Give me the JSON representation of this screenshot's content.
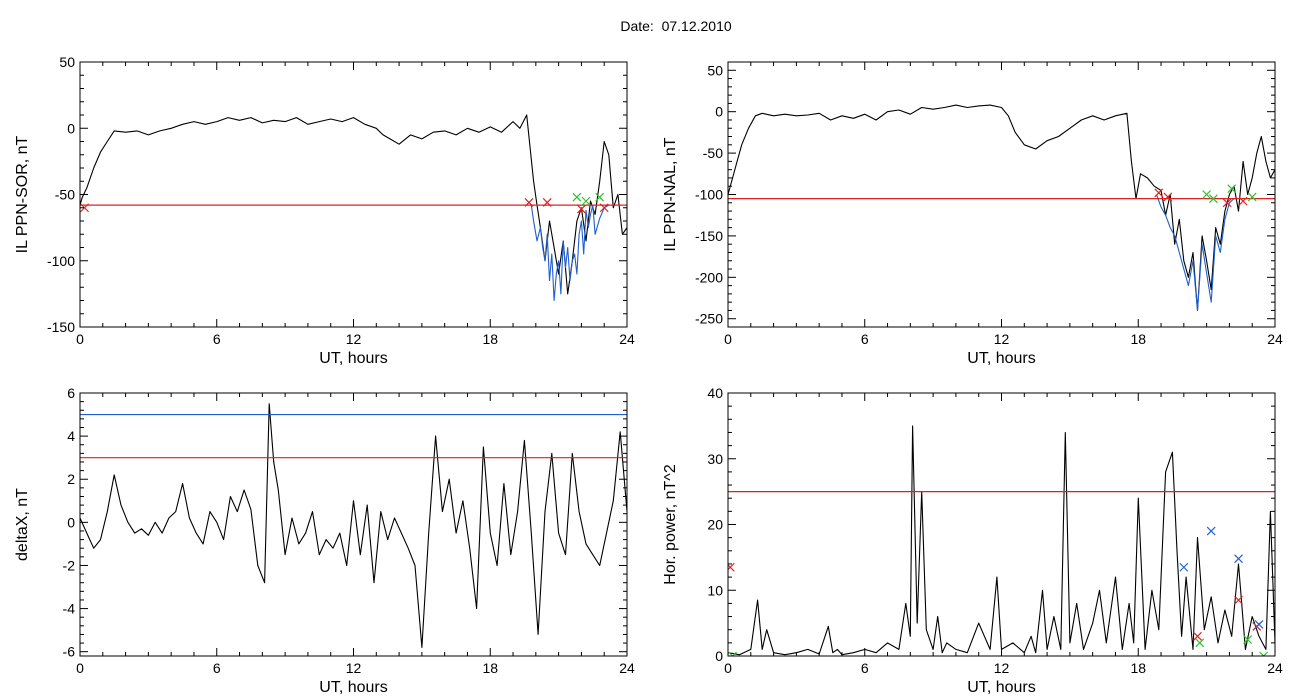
{
  "title": "Date:  07.12.2010",
  "chart_data": [
    {
      "id": "tl",
      "type": "line",
      "xlabel": "UT, hours",
      "ylabel": "IL PPN-SOR, nT",
      "xlim": [
        0,
        24
      ],
      "ylim": [
        -150,
        50
      ],
      "xticks": [
        0,
        6,
        12,
        18,
        24
      ],
      "yticks": [
        -150,
        -100,
        -50,
        0,
        50
      ],
      "ytick_labels": [
        "-150",
        "-100",
        "-50",
        "0",
        "50"
      ],
      "series": [
        {
          "color": "#000000",
          "x": [
            0,
            0.1,
            0.3,
            0.6,
            0.9,
            1.2,
            1.5,
            2,
            2.5,
            3,
            3.5,
            4,
            4.5,
            5,
            5.5,
            6,
            6.5,
            7,
            7.5,
            8,
            8.5,
            9,
            9.5,
            10,
            10.5,
            11,
            11.5,
            12,
            12.5,
            13,
            13.3,
            13.6,
            14,
            14.5,
            15,
            15.5,
            16,
            16.5,
            17,
            17.5,
            18,
            18.5,
            19,
            19.3,
            19.6,
            19.9,
            20.05,
            20.2,
            20.4,
            20.6,
            20.8,
            21,
            21.2,
            21.4,
            21.6,
            21.8,
            22,
            22.2,
            22.4,
            22.6,
            22.8,
            23,
            23.2,
            23.4,
            23.6,
            23.8,
            24
          ],
          "y": [
            -58,
            -52,
            -45,
            -30,
            -18,
            -10,
            -2,
            -3,
            -2,
            -5,
            -2,
            0,
            3,
            5,
            3,
            5,
            8,
            6,
            8,
            4,
            6,
            5,
            8,
            3,
            5,
            7,
            5,
            8,
            3,
            0,
            -5,
            -8,
            -12,
            -5,
            -8,
            -3,
            -2,
            -5,
            0,
            -3,
            1,
            -3,
            5,
            0,
            10,
            -40,
            -58,
            -75,
            -100,
            -70,
            -90,
            -110,
            -85,
            -125,
            -100,
            -70,
            -60,
            -85,
            -55,
            -65,
            -40,
            -10,
            -20,
            -60,
            -50,
            -80,
            -75
          ]
        },
        {
          "color": "#1f5fd0",
          "x": [
            19.8,
            19.9,
            20.05,
            20.2,
            20.3,
            20.4,
            20.5,
            20.6,
            20.7,
            20.8,
            20.9,
            21,
            21.1,
            21.2,
            21.3,
            21.4,
            21.5,
            21.6,
            21.7,
            21.8,
            21.9,
            22,
            22.1,
            22.2,
            22.3,
            22.4,
            22.5,
            22.6,
            22.8,
            23,
            23.2
          ],
          "y": [
            -58,
            -70,
            -85,
            -75,
            -90,
            -100,
            -80,
            -115,
            -95,
            -130,
            -110,
            -100,
            -125,
            -85,
            -105,
            -90,
            -115,
            -100,
            -95,
            -110,
            -80,
            -70,
            -95,
            -62,
            -75,
            -65,
            -58,
            -80,
            -68,
            -60,
            -58
          ]
        },
        {
          "color": "#e02020",
          "kind": "hline",
          "y": -58
        }
      ],
      "markers": [
        {
          "x": 0.2,
          "y": -60,
          "color": "#e02020"
        },
        {
          "x": 19.7,
          "y": -56,
          "color": "#e02020"
        },
        {
          "x": 20.5,
          "y": -56,
          "color": "#e02020"
        },
        {
          "x": 21.8,
          "y": -52,
          "color": "#30c030"
        },
        {
          "x": 22.2,
          "y": -55,
          "color": "#30c030"
        },
        {
          "x": 22.0,
          "y": -61,
          "color": "#e02020"
        },
        {
          "x": 22.8,
          "y": -52,
          "color": "#30c030"
        },
        {
          "x": 23.0,
          "y": -60,
          "color": "#e02020"
        }
      ]
    },
    {
      "id": "tr",
      "type": "line",
      "xlabel": "UT, hours",
      "ylabel": "IL PPN-NAL, nT",
      "xlim": [
        0,
        24
      ],
      "ylim": [
        -260,
        60
      ],
      "xticks": [
        0,
        6,
        12,
        18,
        24
      ],
      "yticks": [
        -250,
        -200,
        -150,
        -100,
        -50,
        0,
        50
      ],
      "ytick_labels": [
        "-250",
        "-200",
        "-150",
        "-100",
        "-50",
        "0",
        "50"
      ],
      "series": [
        {
          "color": "#000000",
          "x": [
            0,
            0.2,
            0.4,
            0.6,
            0.9,
            1.2,
            1.5,
            2,
            2.5,
            3,
            3.5,
            4,
            4.5,
            5,
            5.5,
            6,
            6.5,
            7,
            7.5,
            8,
            8.5,
            9,
            9.5,
            10,
            10.5,
            11,
            11.5,
            12,
            12.3,
            12.6,
            13,
            13.5,
            14,
            14.5,
            15,
            15.5,
            16,
            16.5,
            17,
            17.5,
            17.7,
            17.9,
            18.1,
            18.4,
            18.7,
            19,
            19.2,
            19.4,
            19.6,
            19.8,
            20,
            20.2,
            20.4,
            20.6,
            20.8,
            21,
            21.2,
            21.4,
            21.6,
            21.8,
            22,
            22.2,
            22.4,
            22.6,
            22.8,
            23,
            23.2,
            23.4,
            23.6,
            23.8,
            24
          ],
          "y": [
            -100,
            -80,
            -60,
            -40,
            -20,
            -5,
            -2,
            -5,
            -3,
            -5,
            -4,
            -2,
            -10,
            -5,
            -8,
            -3,
            -10,
            0,
            2,
            -3,
            5,
            3,
            5,
            8,
            5,
            7,
            8,
            5,
            -5,
            -25,
            -40,
            -45,
            -35,
            -30,
            -20,
            -10,
            -5,
            -10,
            -5,
            -2,
            -60,
            -105,
            -75,
            -80,
            -90,
            -95,
            -125,
            -100,
            -160,
            -130,
            -180,
            -200,
            -170,
            -240,
            -150,
            -180,
            -215,
            -140,
            -160,
            -120,
            -100,
            -90,
            -120,
            -60,
            -100,
            -80,
            -50,
            -30,
            -60,
            -80,
            -70
          ]
        },
        {
          "color": "#1f5fd0",
          "x": [
            18.8,
            19,
            19.2,
            19.4,
            19.6,
            19.8,
            20,
            20.2,
            20.4,
            20.6,
            20.8,
            21,
            21.2,
            21.4,
            21.6,
            21.8,
            22,
            22.2
          ],
          "y": [
            -100,
            -115,
            -125,
            -140,
            -150,
            -170,
            -190,
            -210,
            -180,
            -240,
            -160,
            -195,
            -230,
            -150,
            -170,
            -130,
            -110,
            -105
          ]
        },
        {
          "color": "#e02020",
          "kind": "hline",
          "y": -105
        }
      ],
      "markers": [
        {
          "x": 18.9,
          "y": -98,
          "color": "#e02020"
        },
        {
          "x": 19.3,
          "y": -103,
          "color": "#e02020"
        },
        {
          "x": 21.0,
          "y": -100,
          "color": "#30c030"
        },
        {
          "x": 21.3,
          "y": -105,
          "color": "#30c030"
        },
        {
          "x": 21.9,
          "y": -110,
          "color": "#e02020"
        },
        {
          "x": 22.1,
          "y": -93,
          "color": "#30c030"
        },
        {
          "x": 22.6,
          "y": -108,
          "color": "#e02020"
        },
        {
          "x": 23.0,
          "y": -103,
          "color": "#30c030"
        }
      ]
    },
    {
      "id": "bl",
      "type": "line",
      "xlabel": "UT, hours",
      "ylabel": "deltaX, nT",
      "xlim": [
        0,
        24
      ],
      "ylim": [
        -6.2,
        6
      ],
      "xticks": [
        0,
        6,
        12,
        18,
        24
      ],
      "yticks": [
        -6,
        -4,
        -2,
        0,
        2,
        4,
        6
      ],
      "ytick_labels": [
        "-6",
        "-4",
        "-2",
        "0",
        "2",
        "4",
        "6"
      ],
      "series": [
        {
          "color": "#000000",
          "x": [
            0,
            0.3,
            0.6,
            0.9,
            1.2,
            1.5,
            1.8,
            2.1,
            2.4,
            2.7,
            3,
            3.3,
            3.6,
            3.9,
            4.2,
            4.5,
            4.8,
            5.1,
            5.4,
            5.7,
            6,
            6.3,
            6.6,
            6.9,
            7.2,
            7.5,
            7.8,
            8.1,
            8.3,
            8.5,
            8.7,
            9,
            9.3,
            9.6,
            9.9,
            10.2,
            10.5,
            10.8,
            11.1,
            11.4,
            11.7,
            12,
            12.3,
            12.6,
            12.9,
            13.2,
            13.5,
            13.8,
            14.1,
            14.4,
            14.7,
            15,
            15.3,
            15.6,
            15.9,
            16.2,
            16.5,
            16.8,
            17.1,
            17.4,
            17.7,
            18,
            18.3,
            18.6,
            18.9,
            19.2,
            19.5,
            19.8,
            20.1,
            20.4,
            20.7,
            21,
            21.3,
            21.6,
            21.9,
            22.2,
            22.5,
            22.8,
            23.1,
            23.4,
            23.7,
            24
          ],
          "y": [
            0.2,
            -0.5,
            -1.2,
            -0.8,
            0.5,
            2.2,
            0.8,
            0,
            -0.5,
            -0.3,
            -0.6,
            0,
            -0.5,
            0.2,
            0.5,
            1.8,
            0.2,
            -0.5,
            -1,
            0.5,
            0,
            -0.8,
            1.2,
            0.5,
            1.5,
            0.6,
            -2,
            -2.8,
            5.5,
            2.8,
            1.5,
            -1.5,
            0.2,
            -1,
            -0.5,
            0.5,
            -1.5,
            -0.8,
            -1.2,
            -0.5,
            -2,
            1,
            -1.5,
            0.8,
            -2.8,
            0.5,
            -0.8,
            0.2,
            -0.5,
            -1.2,
            -2,
            -5.8,
            -0.5,
            4,
            0.5,
            2,
            -0.5,
            1,
            -1.2,
            -4,
            3.5,
            -0.5,
            -2,
            1.8,
            -1.5,
            0.5,
            3.8,
            -0.5,
            -5.2,
            0.5,
            3.2,
            -0.5,
            -1.5,
            3.2,
            0.5,
            -1,
            -1.5,
            -2,
            -0.5,
            1,
            4.2,
            0.5
          ]
        },
        {
          "color": "#1f5fd0",
          "kind": "hline",
          "y": 5
        },
        {
          "color": "#e02020",
          "kind": "hline",
          "y": 3
        }
      ],
      "markers": []
    },
    {
      "id": "br",
      "type": "line",
      "xlabel": "UT, hours",
      "ylabel": "Hor. power, nT^2",
      "xlim": [
        0,
        24
      ],
      "ylim": [
        0,
        40
      ],
      "xticks": [
        0,
        6,
        12,
        18,
        24
      ],
      "yticks": [
        0,
        10,
        20,
        30,
        40
      ],
      "ytick_labels": [
        "0",
        "10",
        "20",
        "30",
        "40"
      ],
      "series": [
        {
          "color": "#000000",
          "x": [
            0,
            0.5,
            1,
            1.3,
            1.5,
            1.7,
            2,
            2.5,
            3,
            3.5,
            4,
            4.4,
            4.6,
            4.8,
            5,
            5.5,
            6,
            6.5,
            7,
            7.5,
            7.8,
            8,
            8.1,
            8.3,
            8.5,
            8.7,
            9,
            9.2,
            9.4,
            9.6,
            10,
            10.5,
            11,
            11.5,
            11.8,
            12,
            12.5,
            13,
            13.3,
            13.5,
            13.8,
            14,
            14.3,
            14.6,
            14.8,
            15,
            15.3,
            15.6,
            16,
            16.3,
            16.6,
            17,
            17.3,
            17.6,
            17.8,
            18,
            18.3,
            18.6,
            18.9,
            19.2,
            19.5,
            19.7,
            19.9,
            20.1,
            20.4,
            20.6,
            20.9,
            21.2,
            21.5,
            21.8,
            22.1,
            22.4,
            22.7,
            23,
            23.3,
            23.6,
            23.8,
            24
          ],
          "y": [
            0.5,
            0.2,
            1,
            8.5,
            1,
            4,
            0.5,
            0.2,
            0.5,
            1,
            0.3,
            4.5,
            0.5,
            1,
            0.2,
            0.5,
            1,
            0.5,
            2,
            1,
            8,
            3,
            35,
            5,
            25,
            4,
            1,
            6,
            0.5,
            2,
            1,
            0.5,
            5,
            1,
            12,
            1,
            2,
            0.5,
            3,
            0.5,
            10,
            1,
            6,
            1,
            34,
            2,
            8,
            1,
            5,
            10,
            2,
            12,
            1,
            8,
            2,
            24,
            1,
            10,
            4,
            28,
            31,
            16,
            3,
            12,
            1,
            18,
            4,
            9,
            2,
            7,
            3,
            14,
            1,
            6,
            3,
            1,
            22,
            2
          ]
        },
        {
          "color": "#e02020",
          "kind": "hline",
          "y": 25
        }
      ],
      "markers": [
        {
          "x": 0.1,
          "y": 13.5,
          "color": "#e02020"
        },
        {
          "x": 0.2,
          "y": 0,
          "color": "#30c030"
        },
        {
          "x": 20.0,
          "y": 13.5,
          "color": "#2060e0"
        },
        {
          "x": 20.6,
          "y": 3,
          "color": "#e02020"
        },
        {
          "x": 20.7,
          "y": 2,
          "color": "#30c030"
        },
        {
          "x": 21.2,
          "y": 19,
          "color": "#2060e0"
        },
        {
          "x": 22.4,
          "y": 14.8,
          "color": "#2060e0"
        },
        {
          "x": 22.4,
          "y": 8.5,
          "color": "#e02020"
        },
        {
          "x": 22.8,
          "y": 2.5,
          "color": "#30c030"
        },
        {
          "x": 23.2,
          "y": 4.5,
          "color": "#e02020"
        },
        {
          "x": 23.3,
          "y": 4.8,
          "color": "#2060e0"
        },
        {
          "x": 23.5,
          "y": 0,
          "color": "#30c030"
        }
      ]
    }
  ]
}
